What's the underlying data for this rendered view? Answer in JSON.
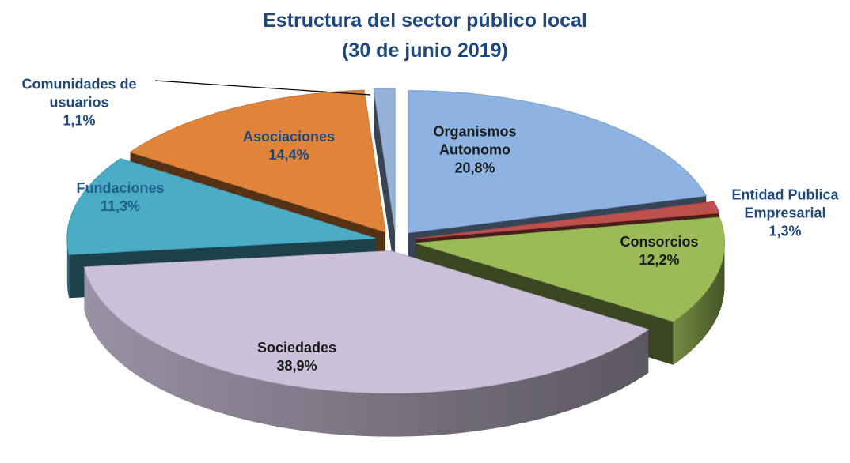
{
  "chart_data": {
    "type": "pie3d",
    "title": "Estructura del sector público local",
    "subtitle": "(30 de junio 2019)",
    "categories": [
      "Organismos Autonomo",
      "Entidad Publica Empresarial",
      "Consorcios",
      "Sociedades",
      "Fundaciones",
      "Asociaciones",
      "Comunidades de usuarios"
    ],
    "values": [
      20.8,
      1.3,
      12.2,
      38.9,
      11.3,
      14.4,
      1.1
    ],
    "value_labels": [
      "20,8%",
      "1,3%",
      "12,2%",
      "38,9%",
      "11,3%",
      "14,4%",
      "1,1%"
    ],
    "colors": [
      "#8db3e2",
      "#c0504d",
      "#9bbb59",
      "#ccc1da",
      "#4bacc6",
      "#e0843a",
      "#95b3d7"
    ]
  }
}
